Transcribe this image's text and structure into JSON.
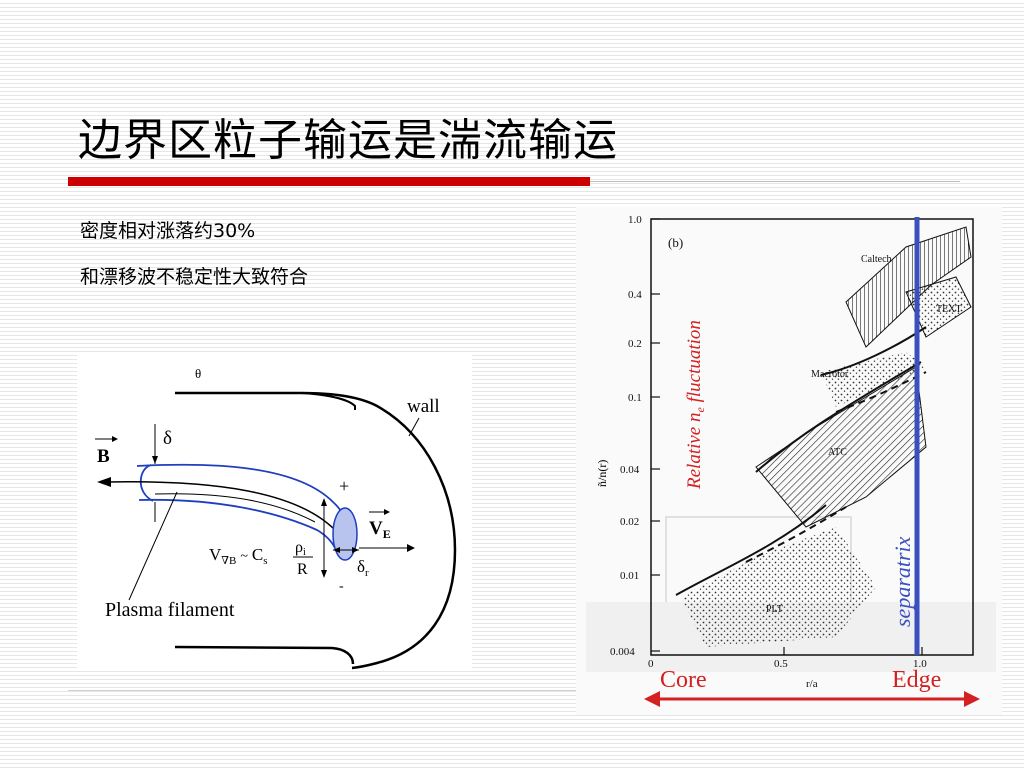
{
  "slide": {
    "title": "边界区粒子输运是湍流输运",
    "bullets": [
      "密度相对涨落约30%",
      "和漂移波不稳定性大致符合"
    ],
    "accent_color": "#cc0000"
  },
  "left_figure": {
    "theta": "θ",
    "wall": "wall",
    "delta": "δ",
    "B": "B",
    "plus": "+",
    "minus": "-",
    "VE": "V",
    "VE_sub": "E",
    "drift_V": "V",
    "drift_sub": "∇B",
    "drift_tilde": "~",
    "drift_C": "C",
    "drift_C_sub": "s",
    "rho": "ρ",
    "rho_sub": "i",
    "R": "R",
    "delta_r": "δ",
    "delta_r_sub": "r",
    "plasma_filament": "Plasma filament",
    "filament_color": "#1f3fbf",
    "blob_color": "#b8c4ee"
  },
  "right_figure": {
    "panel": "(b)",
    "y_axis_label": "ñ/n(r)",
    "y_ticks": [
      "1.0",
      "0.4",
      "0.2",
      "0.1",
      "0.04",
      "0.02",
      "0.01",
      "0.004"
    ],
    "x_axis_label": "r/a",
    "x_ticks": [
      "0",
      "0.5",
      "1.0"
    ],
    "curve_labels": [
      "Caltech",
      "TEXT",
      "Macrotor",
      "ATC",
      "PLT"
    ],
    "overlay_ylabel_pre": "Relative n",
    "overlay_ylabel_sub": "e",
    "overlay_ylabel_post": " fluctuation",
    "separatrix": "separatrix",
    "core": "Core",
    "edge": "Edge",
    "separatrix_color": "#3a4fc0",
    "overlay_red": "#d42020"
  }
}
